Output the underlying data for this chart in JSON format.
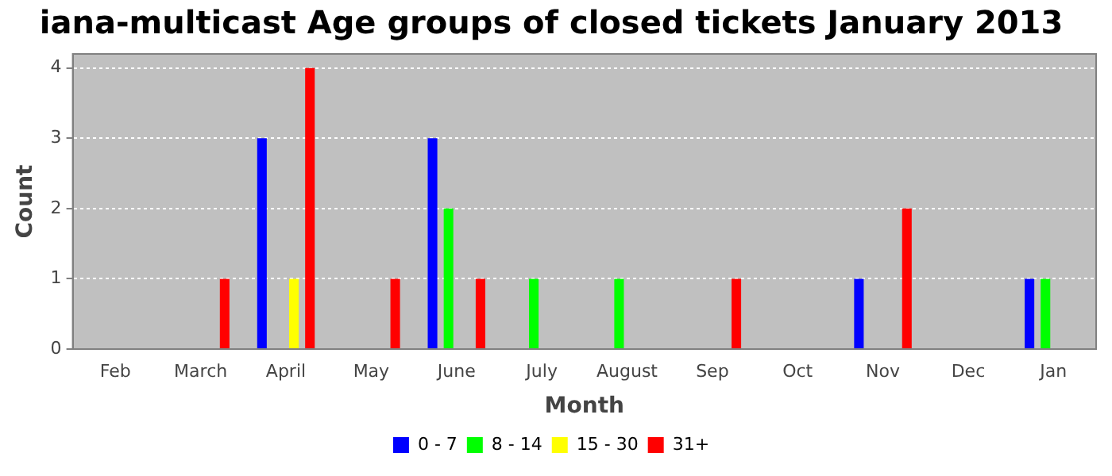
{
  "chart_data": {
    "type": "bar",
    "title": "iana-multicast Age groups of closed tickets January 2013",
    "xlabel": "Month",
    "ylabel": "Count",
    "categories": [
      "Feb",
      "March",
      "April",
      "May",
      "June",
      "July",
      "August",
      "Sep",
      "Oct",
      "Nov",
      "Dec",
      "Jan"
    ],
    "series": [
      {
        "name": "0 - 7",
        "color": "#0000ff",
        "values": [
          0,
          0,
          3,
          0,
          3,
          0,
          0,
          0,
          0,
          1,
          0,
          1
        ]
      },
      {
        "name": "8 - 14",
        "color": "#00ff00",
        "values": [
          0,
          0,
          0,
          0,
          2,
          1,
          1,
          0,
          0,
          0,
          0,
          1
        ]
      },
      {
        "name": "15 - 30",
        "color": "#ffff00",
        "values": [
          0,
          0,
          1,
          0,
          0,
          0,
          0,
          0,
          0,
          0,
          0,
          0
        ]
      },
      {
        "name": "31+",
        "color": "#ff0000",
        "values": [
          0,
          1,
          4,
          1,
          1,
          0,
          0,
          1,
          0,
          2,
          0,
          0
        ]
      }
    ],
    "ylim": [
      0,
      4.2
    ],
    "yticks": [
      0,
      1,
      2,
      3,
      4
    ],
    "grid": "y",
    "legend": "bottom"
  }
}
